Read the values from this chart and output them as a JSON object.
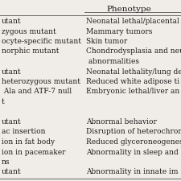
{
  "title": "Phenotype",
  "col1_rows": [
    "utant",
    "zygous mutant",
    "ocyte-specific mutant",
    "norphic mutant",
    "",
    "utant",
    "heterozygous mutant",
    " Ala and ATF-7 null",
    "t",
    "",
    "utant",
    "ac insertion",
    "ion in fat body",
    "ion in pacemaker",
    "ns",
    "utant"
  ],
  "col2_rows": [
    "Neonatal lethal/placental .",
    "Mammary tumors",
    "Skin tumor",
    "Chondrodysplasia and neu",
    " abnormalities",
    "Neonatal lethality/lung de",
    "Reduced white adipose ti",
    "Embryonic lethal/liver an",
    "",
    "",
    "Abnormal behavior",
    "Disruption of heterochron",
    "Reduced glyceroneogenes",
    "Abnormality in sleep and",
    "",
    "Abnormality in innate im"
  ],
  "background_color": "#f0ede8",
  "text_color": "#1a1a1a",
  "font_size": 6.5
}
